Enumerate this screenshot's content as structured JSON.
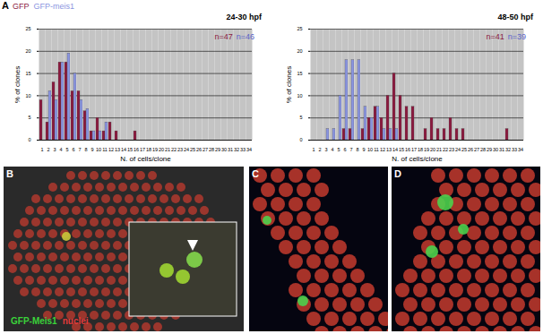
{
  "chart_data": [
    {
      "type": "bar",
      "title": "24-30 hpf",
      "x_label": "N. of cells/clone",
      "y_label": "% of clones",
      "categories": [
        1,
        2,
        3,
        4,
        5,
        6,
        7,
        8,
        9,
        10,
        11,
        12,
        13,
        14,
        15,
        16,
        17,
        18,
        19,
        20,
        21,
        22,
        23,
        24,
        25,
        26,
        27,
        28,
        29,
        30,
        31,
        32,
        33,
        34
      ],
      "series": [
        {
          "name": "GFP",
          "color": "#8b1a3f",
          "values": [
            9,
            4,
            13,
            17.5,
            17.5,
            11,
            11,
            6.5,
            2,
            5,
            2,
            4,
            2,
            0,
            0,
            2,
            0,
            0,
            0,
            0,
            0,
            0,
            0,
            0,
            0,
            0,
            0,
            0,
            0,
            0,
            0,
            0,
            0,
            0
          ]
        },
        {
          "name": "GFP-meis1",
          "color": "#8a95e0",
          "values": [
            0,
            11,
            9,
            17.5,
            19.5,
            15,
            9,
            7,
            2,
            2,
            4,
            0,
            0,
            0,
            0,
            0,
            0,
            0,
            0,
            0,
            0,
            0,
            0,
            0,
            0,
            0,
            0,
            0,
            0,
            0,
            0,
            0,
            0,
            0
          ]
        }
      ],
      "annotations": [
        {
          "text": "n=47",
          "color": "#8b1a3f"
        },
        {
          "text": "n=46",
          "color": "#5b63c9"
        }
      ],
      "ylim": [
        0,
        25
      ],
      "yticks": [
        0,
        5,
        10,
        15,
        20,
        25
      ],
      "grid": true,
      "legend": "top left"
    },
    {
      "type": "bar",
      "title": "48-50 hpf",
      "x_label": "N. of cells/clone",
      "y_label": "% of clones",
      "categories": [
        1,
        2,
        3,
        4,
        5,
        6,
        7,
        8,
        9,
        10,
        11,
        12,
        13,
        14,
        15,
        16,
        17,
        18,
        19,
        20,
        21,
        22,
        23,
        24,
        25,
        26,
        27,
        28,
        29,
        30,
        31,
        32,
        33,
        34
      ],
      "series": [
        {
          "name": "GFP",
          "color": "#8b1a3f",
          "values": [
            0,
            0,
            0,
            0,
            0,
            2.5,
            2.5,
            0,
            2.5,
            5,
            7.5,
            5,
            10,
            15,
            10,
            7.5,
            7.5,
            0,
            2.5,
            5,
            2.5,
            2.5,
            5,
            2.5,
            2.5,
            0,
            0,
            0,
            0,
            0,
            0,
            2.5,
            0,
            0
          ]
        },
        {
          "name": "GFP-meis1",
          "color": "#8a95e0",
          "values": [
            0,
            0,
            2.5,
            2.5,
            10,
            18,
            18,
            18,
            7.5,
            5,
            7.5,
            2.5,
            2.5,
            2.5,
            0,
            0,
            0,
            0,
            0,
            0,
            0,
            0,
            0,
            0,
            0,
            0,
            0,
            0,
            0,
            0,
            0,
            0,
            0,
            0
          ]
        }
      ],
      "annotations": [
        {
          "text": "n=41",
          "color": "#8b1a3f"
        },
        {
          "text": "n=39",
          "color": "#5b63c9"
        }
      ],
      "ylim": [
        0,
        25
      ],
      "yticks": [
        0,
        5,
        10,
        15,
        20,
        25
      ],
      "grid": true
    }
  ],
  "figure": {
    "chart_panel": "A",
    "images": [
      {
        "panel": "B",
        "texts": [
          {
            "text": "GFP-Meis1",
            "color": "#3ad23a"
          },
          {
            "text": "nuclei",
            "color": "#e23a3a"
          }
        ]
      },
      {
        "panel": "C",
        "texts": []
      },
      {
        "panel": "D",
        "texts": []
      }
    ]
  }
}
